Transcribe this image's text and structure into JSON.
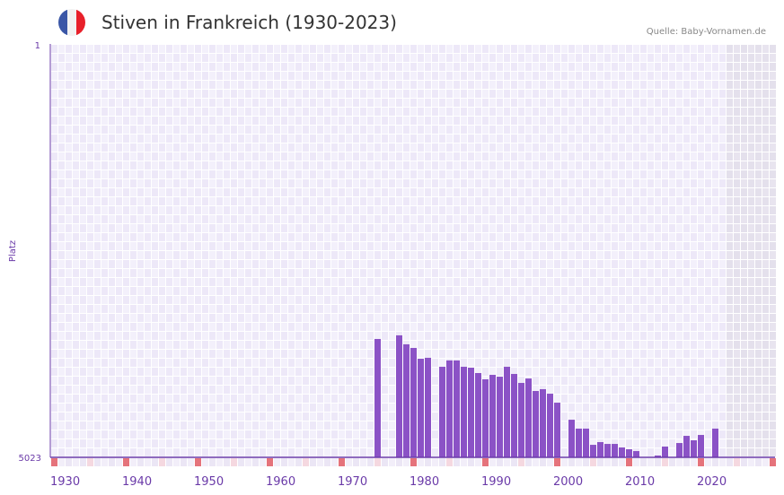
{
  "header": {
    "title": "Stiven in Frankreich (1930-2023)",
    "source": "Quelle: Baby-Vornamen.de",
    "flag_colors": [
      "#3a56a6",
      "#f2f2f2",
      "#e8202a"
    ]
  },
  "chart_data": {
    "type": "bar",
    "title": "Stiven in Frankreich (1930-2023)",
    "xlabel": "",
    "ylabel": "Platz",
    "ylim": [
      5023,
      1
    ],
    "y_ticks": [
      "1",
      "5023"
    ],
    "x_range": [
      1930,
      2030
    ],
    "x_ticks": [
      "1930",
      "1940",
      "1950",
      "1960",
      "1970",
      "1980",
      "1990",
      "2000",
      "2010",
      "2020"
    ],
    "shaded_from": 2024,
    "bar_color": "#8b52c6",
    "x": [
      1975,
      1978,
      1979,
      1980,
      1981,
      1982,
      1984,
      1985,
      1986,
      1987,
      1988,
      1989,
      1990,
      1991,
      1992,
      1993,
      1994,
      1995,
      1996,
      1997,
      1998,
      1999,
      2000,
      2002,
      2003,
      2004,
      2005,
      2006,
      2007,
      2008,
      2009,
      2010,
      2011,
      2014,
      2015,
      2017,
      2018,
      2019,
      2020,
      2022
    ],
    "values": [
      3585,
      3541,
      3650,
      3694,
      3825,
      3814,
      3923,
      3846,
      3846,
      3923,
      3934,
      3999,
      4075,
      4021,
      4043,
      3923,
      4010,
      4119,
      4065,
      4217,
      4195,
      4250,
      4359,
      4566,
      4674,
      4674,
      4871,
      4838,
      4860,
      4860,
      4903,
      4925,
      4947,
      5001,
      4892,
      4849,
      4762,
      4816,
      4751,
      4674
    ]
  }
}
